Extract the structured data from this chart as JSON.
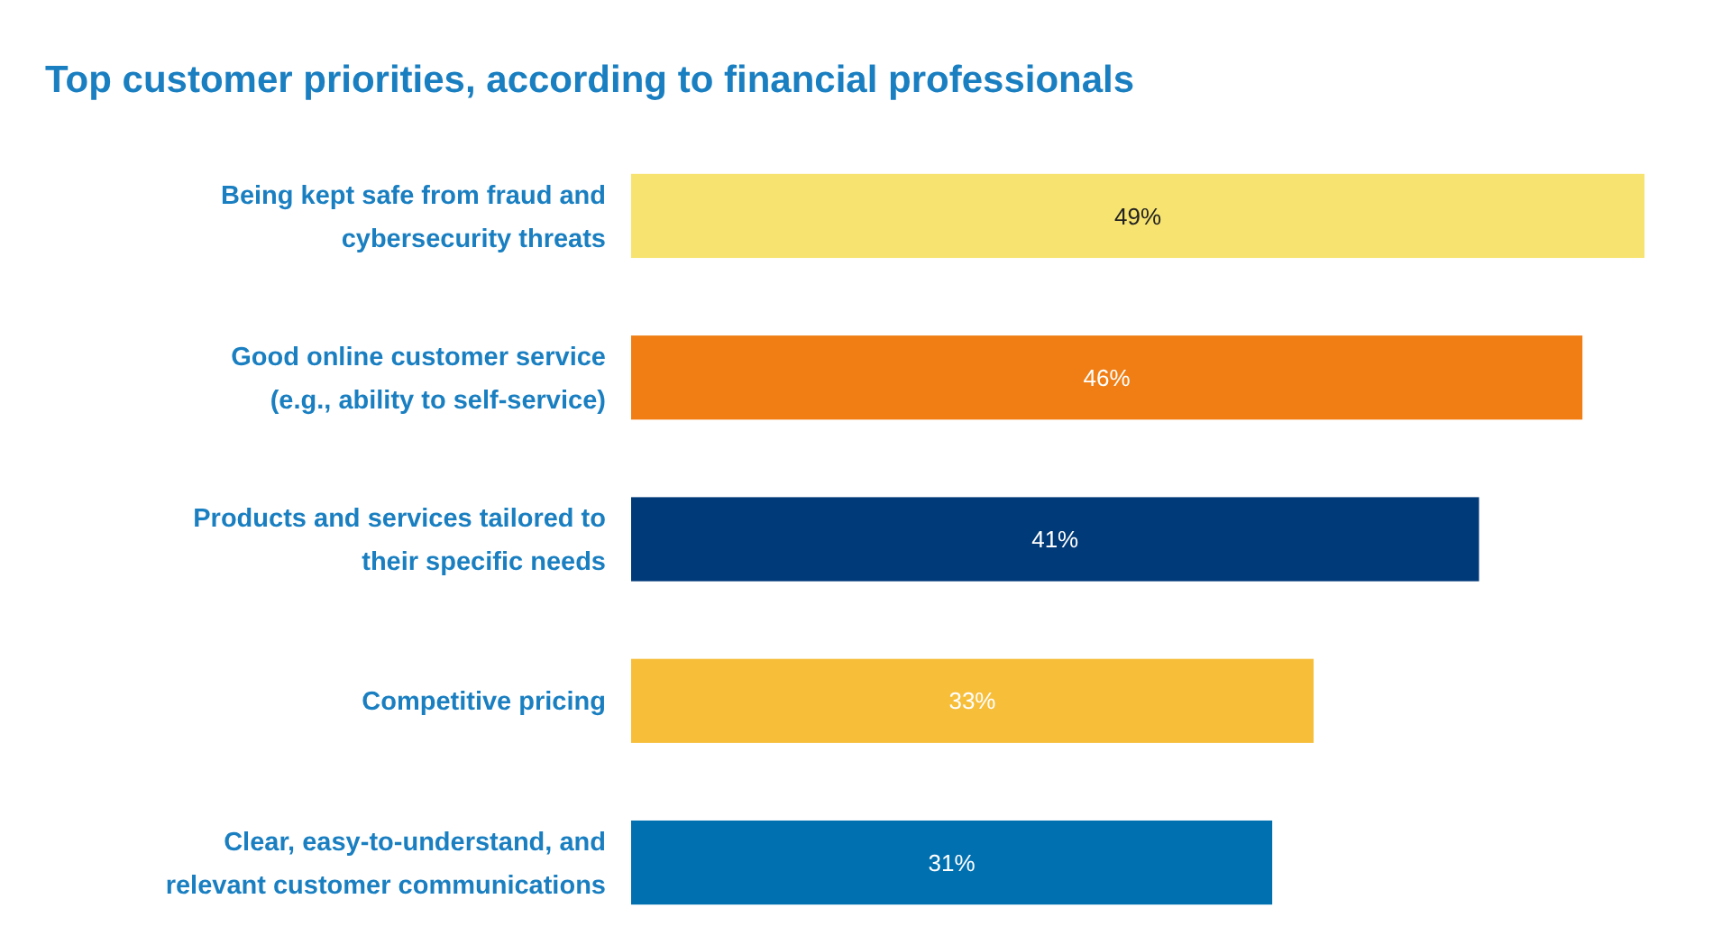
{
  "chart_data": {
    "type": "bar",
    "orientation": "horizontal",
    "title": "Top customer priorities, according to financial professionals",
    "categories": [
      "Being kept safe from fraud and cybersecurity threats",
      "Good online customer service (e.g., ability to self-service)",
      "Products and services tailored to their specific needs",
      "Competitive pricing",
      "Clear, easy-to-understand, and relevant customer communications"
    ],
    "values": [
      49,
      46,
      41,
      33,
      31
    ],
    "colors": [
      "#f7e36f",
      "#f07e14",
      "#003a78",
      "#f7be3a",
      "#0070b0"
    ],
    "value_labels": [
      "49%",
      "46%",
      "41%",
      "33%",
      "31%"
    ]
  }
}
